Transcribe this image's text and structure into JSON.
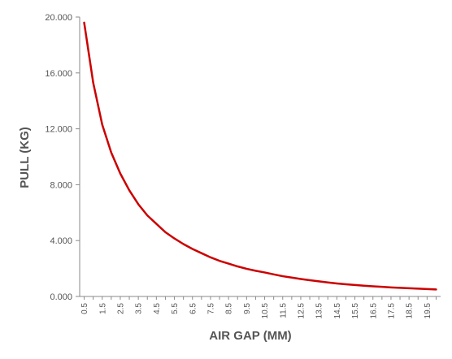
{
  "chart_data": {
    "type": "line",
    "title": "",
    "xlabel": "AIR GAP (MM)",
    "ylabel": "PULL (KG)",
    "x": [
      0.5,
      1,
      1.5,
      2,
      2.5,
      3,
      3.5,
      4,
      4.5,
      5,
      5.5,
      6,
      6.5,
      7,
      7.5,
      8,
      8.5,
      9,
      9.5,
      10,
      10.5,
      11,
      11.5,
      12,
      12.5,
      13,
      13.5,
      14,
      14.5,
      15,
      15.5,
      16,
      16.5,
      17,
      17.5,
      18,
      18.5,
      19,
      19.5,
      20
    ],
    "xtick_labels": [
      "0.5",
      "1.5",
      "2.5",
      "3.5",
      "4.5",
      "5.5",
      "6.5",
      "7.5",
      "8.5",
      "9.5",
      "10.5",
      "11.5",
      "12.5",
      "13.5",
      "14.5",
      "15.5",
      "16.5",
      "17.5",
      "18.5",
      "19.5"
    ],
    "yticks": [
      0,
      4,
      8,
      12,
      16,
      20
    ],
    "ytick_labels": [
      "0.000",
      "4.000",
      "8.000",
      "12.000",
      "16.000",
      "20.000"
    ],
    "ylim": [
      0,
      20
    ],
    "grid": false,
    "series": [
      {
        "values": [
          19.6,
          15.3,
          12.3,
          10.3,
          8.8,
          7.6,
          6.6,
          5.8,
          5.2,
          4.6,
          4.15,
          3.75,
          3.4,
          3.1,
          2.8,
          2.55,
          2.35,
          2.15,
          1.98,
          1.84,
          1.72,
          1.58,
          1.45,
          1.35,
          1.25,
          1.16,
          1.08,
          1.0,
          0.93,
          0.87,
          0.82,
          0.77,
          0.73,
          0.69,
          0.65,
          0.62,
          0.59,
          0.56,
          0.53,
          0.5
        ],
        "color": "#cc0000"
      }
    ]
  }
}
